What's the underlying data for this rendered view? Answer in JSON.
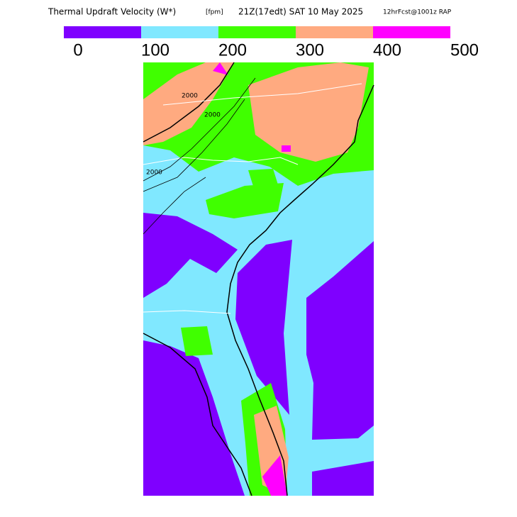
{
  "header": {
    "title": "Thermal Updraft Velocity (W*)",
    "units": "[fpm]",
    "valid_time": "21Z(17edt) SAT 10 May 2025",
    "forecast": "12hrFcst@1001z RAP"
  },
  "legend": {
    "ticks": [
      0,
      100,
      200,
      300,
      400,
      500
    ],
    "colors": [
      "#7f00ff",
      "#80e8ff",
      "#40ff00",
      "#ffaa80",
      "#ff00ff"
    ]
  },
  "map": {
    "contour_label": "2000"
  }
}
